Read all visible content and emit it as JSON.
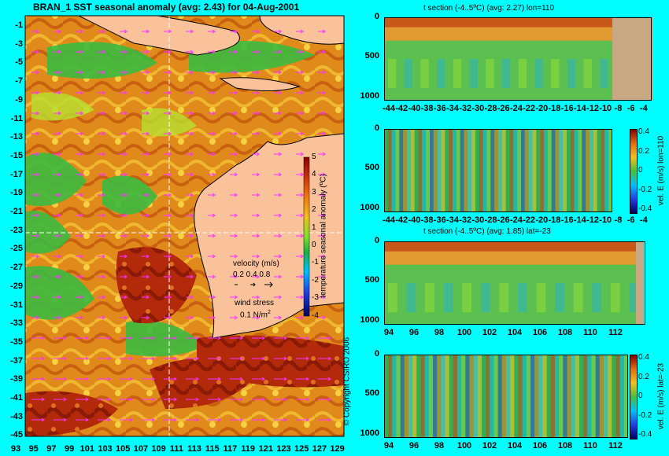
{
  "main_title": "BRAN_1  SST seasonal anomaly  (avg: 2.43)  for 04-Aug-2001",
  "map": {
    "lat_ticks": [
      "-1",
      "-3",
      "-5",
      "-7",
      "-9",
      "-11",
      "-13",
      "-15",
      "-17",
      "-19",
      "-21",
      "-23",
      "-25",
      "-27",
      "-29",
      "-31",
      "-33",
      "-35",
      "-37",
      "-39",
      "-41",
      "-43",
      "-45"
    ],
    "lon_ticks": [
      "93",
      "95",
      "97",
      "99",
      "101",
      "103",
      "105",
      "107",
      "109",
      "111",
      "113",
      "115",
      "117",
      "119",
      "121",
      "123",
      "125",
      "127",
      "129"
    ],
    "velocity_title": "velocity (m/s)",
    "velocity_scale": "0.2 0.4 0.8",
    "wind_title": "wind stress",
    "wind_scale": "0.1 N/m",
    "wind_scale_sup": "2",
    "copyright": "© Copyright CSIRO 2006"
  },
  "colorbar_map": {
    "label": "temperature seasonal anomaly (ºC)",
    "ticks": [
      "5",
      "4",
      "3",
      "2",
      "1",
      "0",
      "-1",
      "-2",
      "-3",
      "-4"
    ]
  },
  "panels": [
    {
      "title": "t section (-4..5ºC)  (avg: 2.27) lon=110",
      "y_ticks": [
        "0",
        "500",
        "1000"
      ],
      "x_ticks": [
        "-44",
        "-42",
        "-40",
        "-38",
        "-36",
        "-34",
        "-32",
        "-30",
        "-28",
        "-26",
        "-24",
        "-22",
        "-20",
        "-18",
        "-16",
        "-14",
        "-12",
        "-10",
        "-8",
        "-6",
        "-4"
      ]
    },
    {
      "title": "",
      "y_ticks": [
        "0",
        "500",
        "1000"
      ],
      "x_ticks": [
        "-44",
        "-42",
        "-40",
        "-38",
        "-36",
        "-34",
        "-32",
        "-30",
        "-28",
        "-26",
        "-24",
        "-22",
        "-20",
        "-18",
        "-16",
        "-14",
        "-12",
        "-10",
        "-8",
        "-6",
        "-4"
      ],
      "cbar_label": "vel. E (m/s) lon=110",
      "cbar_ticks": [
        "0.4",
        "0.2",
        "0",
        "-0.2",
        "-0.4"
      ]
    },
    {
      "title": "t section (-4..5ºC)  (avg: 1.85) lat=-23",
      "y_ticks": [
        "0",
        "500",
        "1000"
      ],
      "x_ticks": [
        "94",
        "96",
        "98",
        "100",
        "102",
        "104",
        "106",
        "108",
        "110",
        "112"
      ]
    },
    {
      "title": "",
      "y_ticks": [
        "0",
        "500",
        "1000"
      ],
      "x_ticks": [
        "94",
        "96",
        "98",
        "100",
        "102",
        "104",
        "106",
        "108",
        "110",
        "112"
      ],
      "cbar_label": "vel. E (m/s) lat=-23",
      "cbar_ticks": [
        "0.4",
        "0.2",
        "0",
        "-0.2",
        "-0.4"
      ]
    }
  ],
  "chart_data": [
    {
      "type": "heatmap",
      "title": "BRAN_1  SST seasonal anomaly  (avg: 2.43)  for 04-Aug-2001",
      "xlim": [
        93,
        130
      ],
      "ylim": [
        -45,
        0
      ],
      "colorbar_range": [
        -4,
        5
      ],
      "colorbar_label": "temperature seasonal anomaly (ºC)"
    },
    {
      "type": "heatmap",
      "title": "t section (-4..5ºC)  (avg: 2.27) lon=110",
      "xlim": [
        -45,
        -3
      ],
      "ylim": [
        1050,
        0
      ]
    },
    {
      "type": "heatmap",
      "title": "",
      "xlim": [
        -45,
        -3
      ],
      "ylim": [
        1050,
        0
      ],
      "colorbar_range": [
        -0.45,
        0.45
      ],
      "colorbar_label": "vel. E (m/s) lon=110"
    },
    {
      "type": "heatmap",
      "title": "t section (-4..5ºC)  (avg: 1.85) lat=-23",
      "xlim": [
        93,
        113
      ],
      "ylim": [
        1050,
        0
      ]
    },
    {
      "type": "heatmap",
      "title": "",
      "xlim": [
        93,
        113
      ],
      "ylim": [
        1050,
        0
      ],
      "colorbar_range": [
        -0.45,
        0.45
      ],
      "colorbar_label": "vel. E (m/s) lat=-23"
    }
  ]
}
